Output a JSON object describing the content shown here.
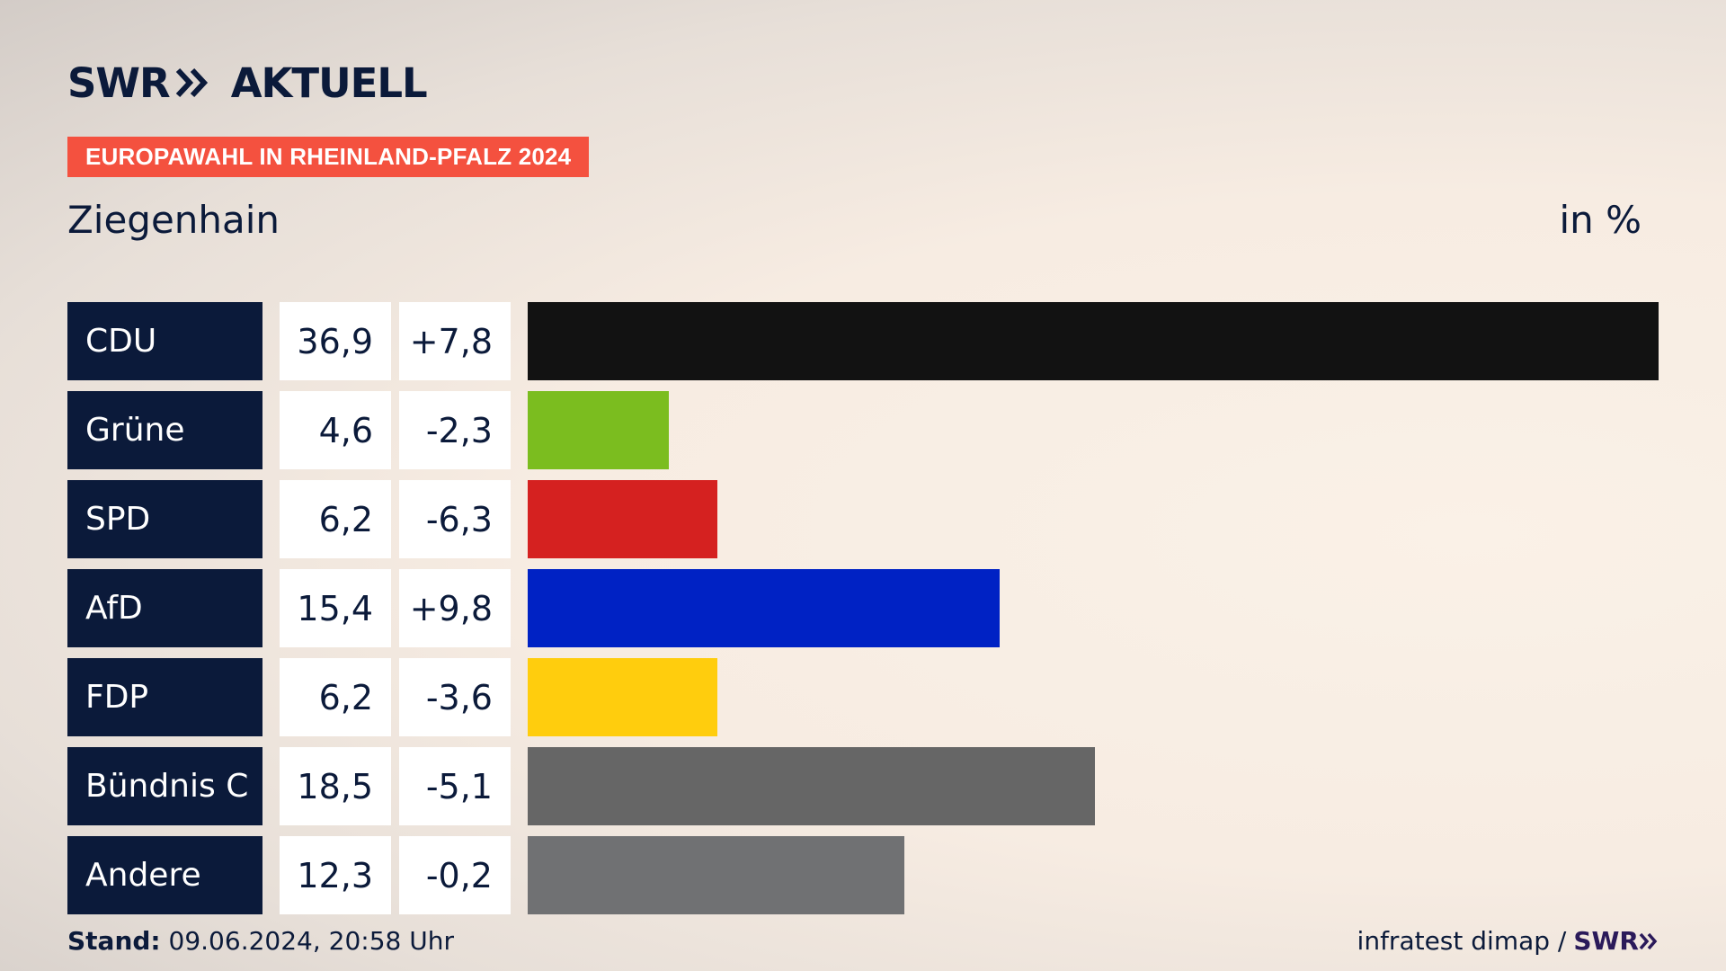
{
  "header": {
    "logo_text": "SWR",
    "logo_suffix": "AKTUELL",
    "banner": "EUROPAWAHL IN RHEINLAND-PFALZ 2024",
    "subtitle": "Ziegenhain",
    "unit": "in %"
  },
  "footer": {
    "stand_label": "Stand:",
    "stand_value": "09.06.2024, 20:58 Uhr",
    "source": "infratest dimap /",
    "source_brand": "SWR"
  },
  "colors": {
    "navy": "#0b1a3a",
    "banner": "#f4513f"
  },
  "chart_data": {
    "type": "bar",
    "orientation": "horizontal",
    "categories": [
      "CDU",
      "Grüne",
      "SPD",
      "AfD",
      "FDP",
      "Bündnis C",
      "Andere"
    ],
    "values": [
      36.9,
      4.6,
      6.2,
      15.4,
      6.2,
      18.5,
      12.3
    ],
    "value_labels": [
      "36,9",
      "4,6",
      "6,2",
      "15,4",
      "6,2",
      "18,5",
      "12,3"
    ],
    "diff_labels": [
      "+7,8",
      "-2,3",
      "-6,3",
      "+9,8",
      "-3,6",
      "-5,1",
      "-0,2"
    ],
    "diffs": [
      7.8,
      -2.3,
      -6.3,
      9.8,
      -3.6,
      -5.1,
      -0.2
    ],
    "colors": [
      "#121212",
      "#7bbd1f",
      "#d52120",
      "#0022c4",
      "#ffcd0d",
      "#666666",
      "#707173"
    ],
    "xlim": [
      0,
      36.9
    ],
    "title": "Ziegenhain",
    "unit": "in %"
  }
}
